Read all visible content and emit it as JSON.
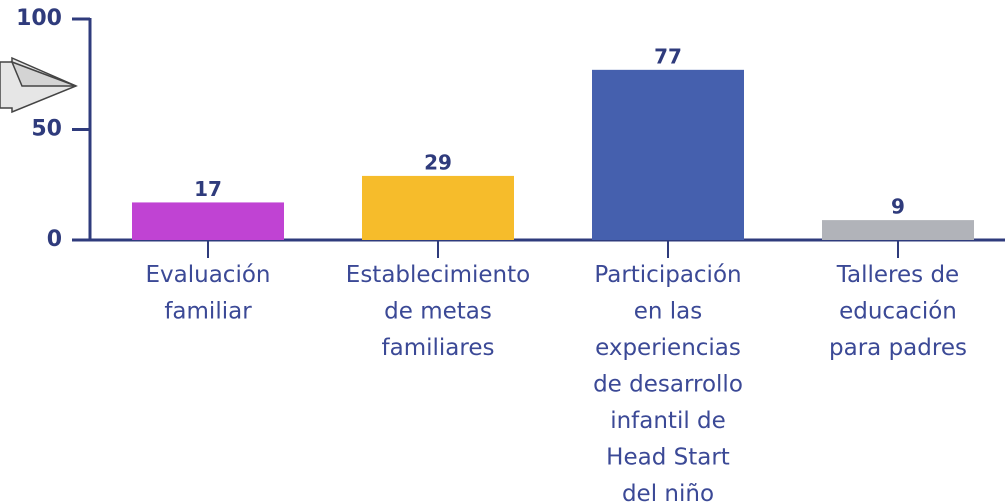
{
  "chart_data": {
    "type": "bar",
    "categories": [
      "Evaluación\nfamiliar",
      "Establecimiento\nde metas\nfamiliares",
      "Participación\nen las\nexperiencias\nde desarrollo\ninfantil de\nHead Start\ndel niño",
      "Talleres de\neducación\npara padres"
    ],
    "values": [
      17,
      29,
      77,
      9
    ],
    "colors": [
      "#c043d3",
      "#f6bc2b",
      "#4560ae",
      "#b1b3b9"
    ],
    "ylim": [
      0,
      100
    ],
    "yticks": [
      0,
      50,
      100
    ],
    "grid": false
  }
}
